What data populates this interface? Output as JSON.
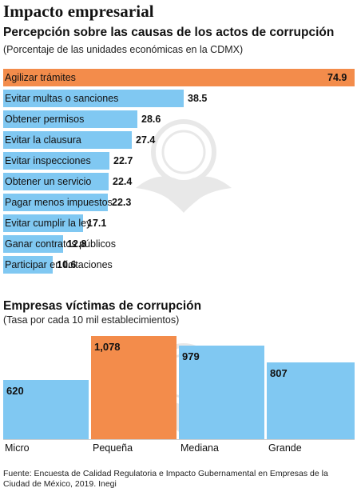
{
  "title": "Impacto empresarial",
  "sections": [
    {
      "title": "Percepción sobre las causas de los actos de corrupción",
      "subtitle": "(Porcentaje de las unidades económicas en la CDMX)"
    },
    {
      "title": "Empresas víctimas de corrupción",
      "subtitle": "(Tasa por cada 10 mil establecimientos)"
    }
  ],
  "source": "Fuente: Encuesta de Calidad Regulatoria e Impacto Gubernamental en Empresas de la Ciudad de México, 2019. Inegi",
  "colors": {
    "blue": "#80c8f2",
    "orange": "#f38c4b"
  },
  "chart_data": [
    {
      "type": "bar",
      "orientation": "horizontal",
      "title": "Percepción sobre las causas de los actos de corrupción",
      "subtitle": "(Porcentaje de las unidades económicas en la CDMX)",
      "categories": [
        "Agilizar trámites",
        "Evitar multas o sanciones",
        "Obtener permisos",
        "Evitar la clausura",
        "Evitar inspecciones",
        "Obtener un servicio",
        "Pagar menos impuestos",
        "Evitar cumplir la ley",
        "Ganar contratos públicos",
        "Participar en licitaciones"
      ],
      "values": [
        74.9,
        38.5,
        28.6,
        27.4,
        22.7,
        22.4,
        22.3,
        17.1,
        12.8,
        10.6
      ],
      "value_labels": [
        "74.9",
        "38.5",
        "28.6",
        "27.4",
        "22.7",
        "22.4",
        "22.3",
        "17.1",
        "12.8",
        "10.6"
      ],
      "xlim": [
        0,
        74.9
      ],
      "highlight_index": 0,
      "grid": false
    },
    {
      "type": "bar",
      "title": "Empresas víctimas de corrupción",
      "subtitle": "(Tasa por cada 10 mil establecimientos)",
      "categories": [
        "Micro",
        "Pequeña",
        "Mediana",
        "Grande"
      ],
      "values": [
        620,
        1078,
        979,
        807
      ],
      "value_labels": [
        "620",
        "1,078",
        "979",
        "807"
      ],
      "ylim": [
        0,
        1078
      ],
      "highlight_index": 1,
      "grid": false
    }
  ]
}
